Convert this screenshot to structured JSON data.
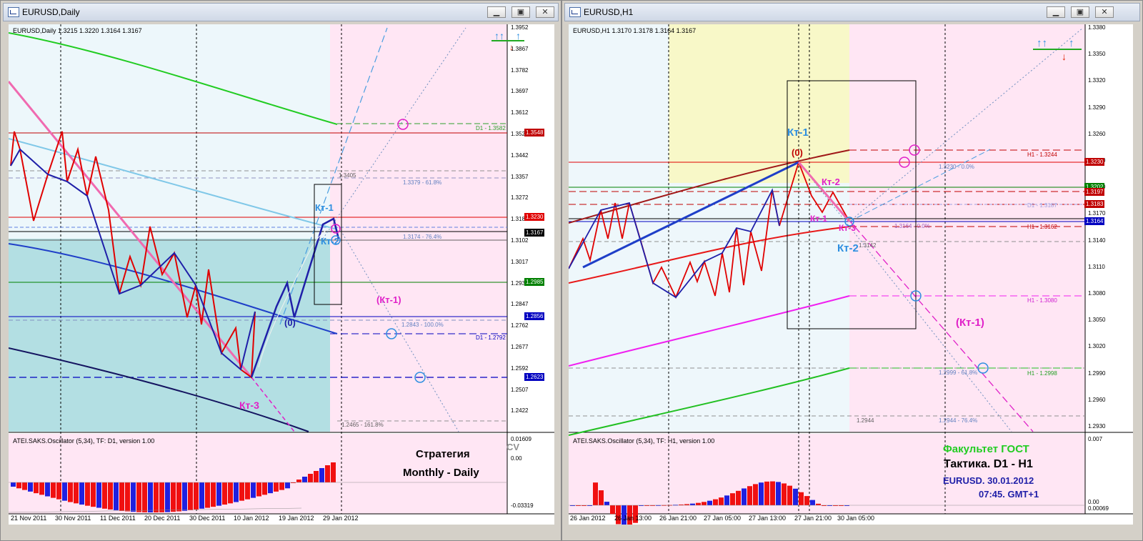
{
  "colors": {
    "kt_blue": "#2e8fe0",
    "kt_magenta": "#e020c8",
    "zero_red": "#c00000",
    "strategy": "#000000",
    "gost_green": "#22cc22",
    "navy": "#1f1fa8"
  },
  "left": {
    "title": "EURUSD,Daily",
    "ohlc": "EURUSD,Daily  1.3215 1.3220 1.3164 1.3167",
    "price_axis": [
      "1.3952",
      "1.3867",
      "1.3782",
      "1.3697",
      "1.3612",
      "1.3527",
      "1.3442",
      "1.3357",
      "1.3272",
      "1.3187",
      "1.3102",
      "1.3017",
      "1.2932",
      "1.2847",
      "1.2762",
      "1.2677",
      "1.2592",
      "1.2507",
      "1.2422"
    ],
    "price_boxes": [
      {
        "text": "1.3548",
        "color": "#c00000"
      },
      {
        "text": "1.3230",
        "color": "#e00000"
      },
      {
        "text": "1.3167",
        "color": "#000000"
      },
      {
        "text": "1.2985",
        "color": "#008000"
      },
      {
        "text": "1.2856",
        "color": "#0000c0"
      },
      {
        "text": "1.2623",
        "color": "#0000c0"
      }
    ],
    "line_labels": {
      "d1_3582": "D1 - 1.3582",
      "v3405": "1.3405",
      "fib618": "1.3379 - 61.8%",
      "fib764": "1.3174 - 76.4%",
      "fib1000": "1.2843 - 100.0%",
      "d1_2792": "D1 - 1.2792",
      "fib1618": "1.2465 - 161.8%"
    },
    "annotations": {
      "kt1": "Кт-1",
      "kt2": "Кт-2",
      "kt3": "Кт-3",
      "kt1p": "(Кт-1)",
      "zero": "(0)"
    },
    "osc_label": "ATEI.SAKS.Oscillator (5,34), TF: D1, version 1.00",
    "osc_axis": [
      "0.01609",
      "0.00",
      "-0.03319"
    ],
    "osc_cv": "CV",
    "strategy_line1": "Стратегия",
    "strategy_line2": "Monthly - Daily",
    "time_axis": [
      "21 Nov 2011",
      "30 Nov 2011",
      "11 Dec 2011",
      "20 Dec 2011",
      "30 Dec 2011",
      "10 Jan 2012",
      "19 Jan 2012",
      "29 Jan 2012"
    ]
  },
  "right": {
    "title": "EURUSD,H1",
    "ohlc": "EURUSD,H1  1.3170 1.3178 1.3164 1.3167",
    "price_axis": [
      "1.3380",
      "1.3350",
      "1.3320",
      "1.3290",
      "1.3260",
      "1.3230",
      "1.3200",
      "1.3170",
      "1.3140",
      "1.3110",
      "1.3080",
      "1.3050",
      "1.3020",
      "1.2990",
      "1.2960",
      "1.2930"
    ],
    "price_boxes": [
      {
        "text": "1.3230",
        "color": "#c00000"
      },
      {
        "text": "1.3202",
        "color": "#008000"
      },
      {
        "text": "1.3197",
        "color": "#c00000"
      },
      {
        "text": "1.3183",
        "color": "#c00000"
      },
      {
        "text": "1.3164",
        "color": "#0000c0"
      }
    ],
    "line_labels": {
      "h1_3244": "H1 - 1.3244",
      "fib00": "1.3230 - 0.0%",
      "h1_3162": "H1 - 1.3162",
      "fib00b": "1.3164 - 0.0%",
      "v3142": "1.3142",
      "h1_3080": "H1 - 1.3080",
      "fib618": "1.2999 - 61.8%",
      "h1_2998": "H1 - 1.2998",
      "v2944": "1.2944",
      "fib764": "1.2944 - 76.4%",
      "d1_3187": "D1 - 1.3187"
    },
    "annotations": {
      "kt1": "Кт-1",
      "kt2": "Кт-2",
      "kt2b": "Кт-2",
      "kt3": "Кт-3",
      "kt1b": "Кт-1",
      "kt1p": "(Кт-1)",
      "zero": "(0)"
    },
    "osc_label": "ATEI.SAKS.Oscillator (5,34), TF: H1, version 1.00",
    "osc_axis": [
      "0.007",
      "0.00",
      "0.00069"
    ],
    "gost": "Факультет ГОСТ",
    "tactic": "Тактика. D1 - H1",
    "date_line": "EURUSD. 30.01.2012",
    "time_line": "07:45. GMT+1",
    "time_axis": [
      "26 Jan 2012",
      "26 Jan 13:00",
      "26 Jan 21:00",
      "27 Jan 05:00",
      "27 Jan 13:00",
      "27 Jan 21:00",
      "30 Jan 05:00"
    ]
  }
}
